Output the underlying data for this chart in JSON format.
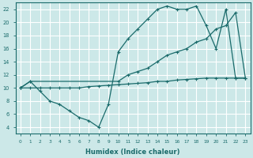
{
  "xlabel": "Humidex (Indice chaleur)",
  "bg_color": "#cce8e8",
  "line_color": "#1a6b6b",
  "grid_color": "#ffffff",
  "xlim": [
    -0.5,
    23.5
  ],
  "ylim": [
    3,
    23
  ],
  "xticks": [
    0,
    1,
    2,
    3,
    4,
    5,
    6,
    7,
    8,
    9,
    10,
    11,
    12,
    13,
    14,
    15,
    16,
    17,
    18,
    19,
    20,
    21,
    22,
    23
  ],
  "yticks": [
    4,
    6,
    8,
    10,
    12,
    14,
    16,
    18,
    20,
    22
  ],
  "line1_x": [
    0,
    1,
    2,
    3,
    4,
    5,
    6,
    7,
    8,
    9,
    10,
    11,
    12,
    13,
    14,
    15,
    16,
    17,
    18,
    19,
    20,
    21,
    22,
    23
  ],
  "line1_y": [
    10,
    11,
    9.5,
    8,
    7.5,
    6.5,
    5.5,
    5,
    4,
    7.5,
    15.5,
    17.5,
    19,
    20.5,
    22,
    22.5,
    22,
    22,
    22.5,
    19.5,
    16,
    22,
    11.5,
    11.5
  ],
  "line2_x": [
    0,
    1,
    10,
    11,
    12,
    13,
    14,
    15,
    16,
    17,
    18,
    19,
    20,
    21,
    22,
    23
  ],
  "line2_y": [
    10,
    11,
    11,
    12,
    12.5,
    13,
    14,
    15,
    15.5,
    16,
    17,
    17.5,
    19,
    19.5,
    21.5,
    11.5
  ],
  "line3_x": [
    0,
    1,
    2,
    3,
    4,
    5,
    6,
    7,
    8,
    9,
    10,
    11,
    12,
    13,
    14,
    15,
    16,
    17,
    18,
    19,
    20,
    21,
    22,
    23
  ],
  "line3_y": [
    10,
    10,
    10,
    10,
    10,
    10,
    10,
    10.2,
    10.3,
    10.4,
    10.5,
    10.6,
    10.7,
    10.8,
    11,
    11,
    11.2,
    11.3,
    11.4,
    11.5,
    11.5,
    11.5,
    11.5,
    11.5
  ]
}
